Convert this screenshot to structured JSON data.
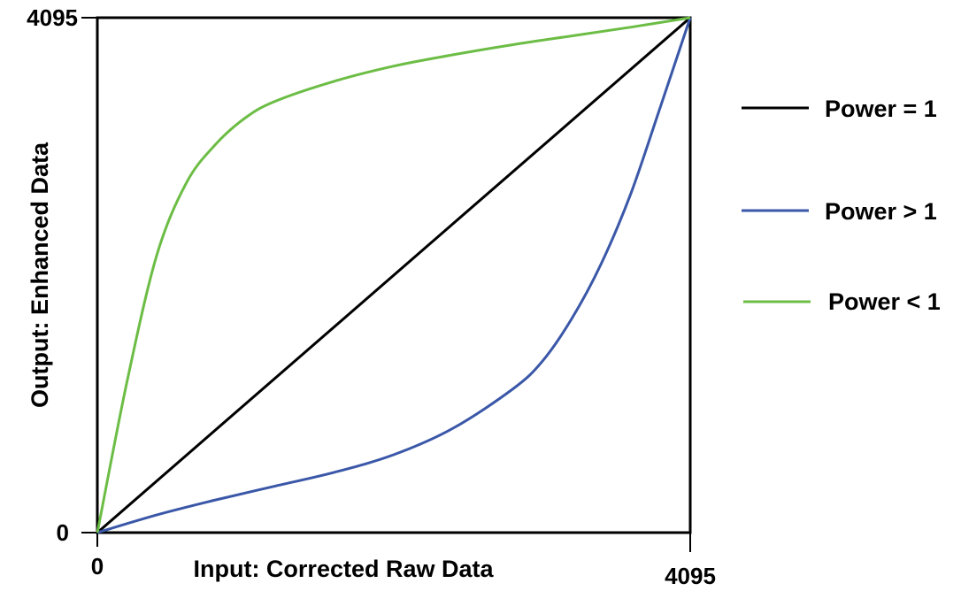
{
  "chart_data": {
    "type": "line",
    "xlabel": "Input: Corrected Raw Data",
    "ylabel": "Output: Enhanced Data",
    "xlim": [
      0,
      4095
    ],
    "ylim": [
      0,
      4095
    ],
    "x_ticks": [
      "0",
      "4095"
    ],
    "y_ticks": [
      "0",
      "4095"
    ],
    "grid": false,
    "legend_position": "right",
    "series": [
      {
        "name": "Power = 1",
        "color": "#000000",
        "x": [
          0,
          4095
        ],
        "y": [
          0,
          4095
        ]
      },
      {
        "name": "Power > 1",
        "color": "#3a57a8",
        "x": [
          0,
          409,
          819,
          1228,
          1638,
          2048,
          2457,
          2867,
          3072,
          3276,
          3481,
          3686,
          3890,
          4095
        ],
        "y": [
          0,
          140,
          260,
          370,
          480,
          620,
          830,
          1140,
          1360,
          1700,
          2140,
          2700,
          3390,
          4095
        ]
      },
      {
        "name": "Power < 1",
        "color": "#6cbd45",
        "x": [
          0,
          205,
          409,
          614,
          819,
          1024,
          1228,
          1638,
          2048,
          2457,
          2867,
          3276,
          3686,
          4095
        ],
        "y": [
          0,
          1200,
          2200,
          2780,
          3090,
          3300,
          3430,
          3590,
          3710,
          3800,
          3880,
          3950,
          4020,
          4095
        ]
      }
    ]
  }
}
